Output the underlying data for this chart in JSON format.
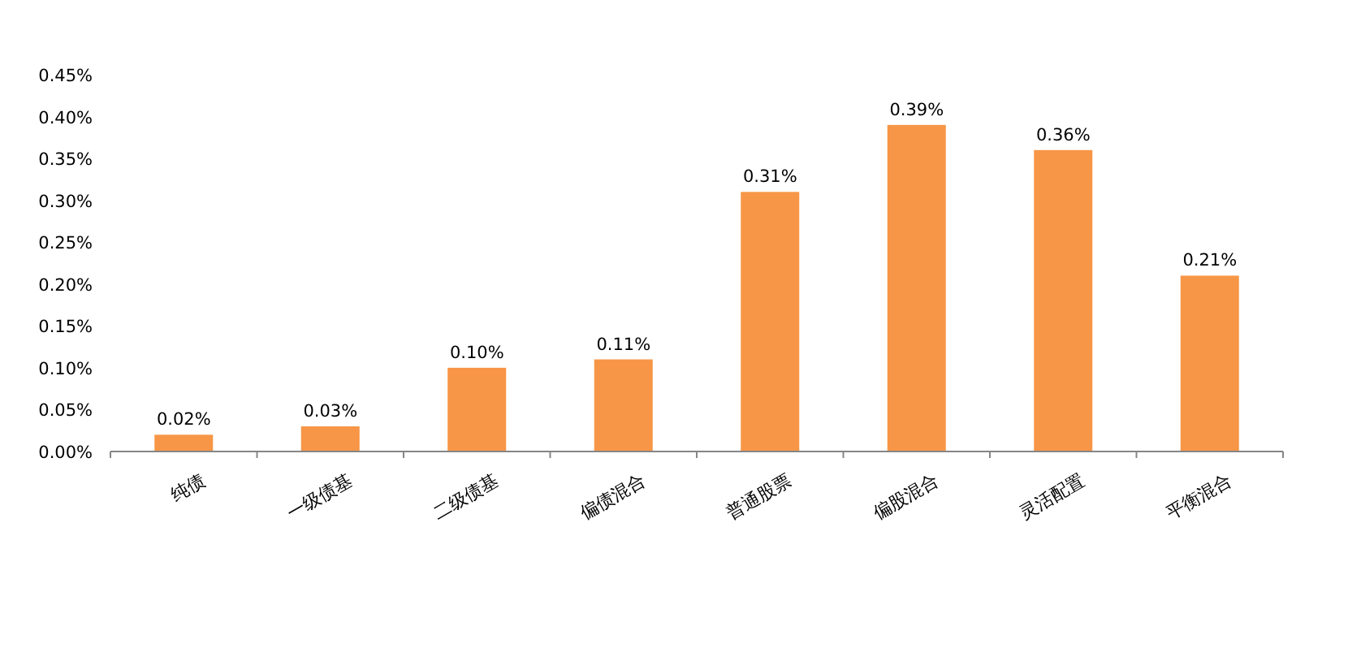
{
  "chart_data": {
    "type": "bar",
    "categories": [
      "纯债",
      "一级债基",
      "二级债基",
      "偏债混合",
      "普通股票",
      "偏股混合",
      "灵活配置",
      "平衡混合"
    ],
    "values": [
      0.02,
      0.03,
      0.1,
      0.11,
      0.31,
      0.39,
      0.36,
      0.21
    ],
    "value_labels": [
      "0.02%",
      "0.03%",
      "0.10%",
      "0.11%",
      "0.31%",
      "0.39%",
      "0.36%",
      "0.21%"
    ],
    "color": "#f79646",
    "ylim": [
      0,
      0.45
    ],
    "yticks": [
      {
        "value": 0,
        "label": "0.00%"
      },
      {
        "value": 0.05,
        "label": "0.05%"
      },
      {
        "value": 0.1,
        "label": "0.10%"
      },
      {
        "value": 0.15,
        "label": "0.15%"
      },
      {
        "value": 0.2,
        "label": "0.20%"
      },
      {
        "value": 0.25,
        "label": "0.25%"
      },
      {
        "value": 0.3,
        "label": "0.30%"
      },
      {
        "value": 0.35,
        "label": "0.35%"
      },
      {
        "value": 0.4,
        "label": "0.40%"
      },
      {
        "value": 0.45,
        "label": "0.45%"
      }
    ],
    "grid": false
  }
}
